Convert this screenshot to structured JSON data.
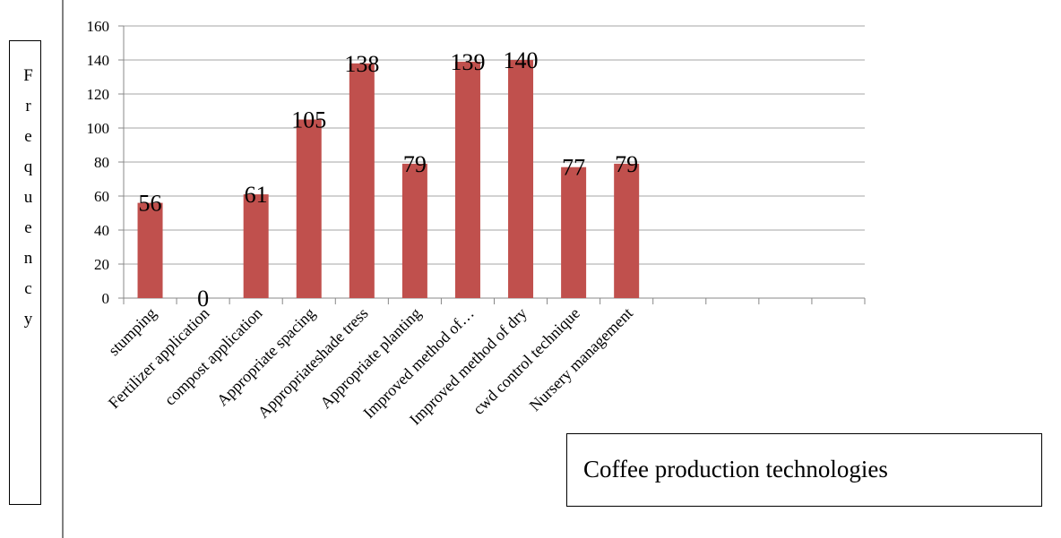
{
  "chart_data": {
    "type": "bar",
    "y_label": "Frequency",
    "x_label": "Coffee production technologies",
    "categories": [
      "stumping",
      "Fertilizer application",
      "compost application",
      "Appropriate spacing",
      "Appropriateshade tress",
      "Appropriate planting",
      "Improved method of…",
      "Improved method of dry",
      "cwd control technique",
      "Nursery management",
      null,
      null,
      null,
      null
    ],
    "values": [
      56,
      0,
      61,
      105,
      138,
      79,
      139,
      140,
      77,
      79,
      null,
      null,
      null,
      null
    ],
    "color": "#c0504d",
    "ylim": [
      0,
      160
    ],
    "yticks": [
      0,
      20,
      40,
      60,
      80,
      100,
      120,
      140,
      160
    ],
    "grid": true
  }
}
